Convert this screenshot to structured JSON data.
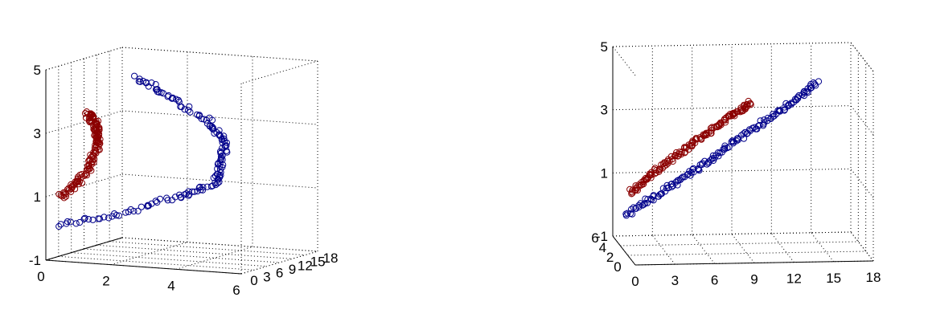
{
  "chart_data": [
    {
      "type": "scatter",
      "view": "3d",
      "grid": true,
      "axes": {
        "x": {
          "ticks": [
            "0",
            "2",
            "4",
            "6"
          ],
          "range": [
            0,
            6
          ]
        },
        "y": {
          "ticks": [
            "0",
            "3",
            "6",
            "9",
            "12",
            "15",
            "18"
          ],
          "range": [
            0,
            18
          ]
        },
        "z": {
          "ticks": [
            "-1",
            "1",
            "3",
            "5"
          ],
          "range": [
            -1,
            5
          ]
        }
      },
      "series": [
        {
          "color": "#00008b",
          "marker": "open-circle",
          "curve": [
            [
              0,
              0
            ],
            [
              2,
              0.5
            ],
            [
              3.8,
              1.2
            ],
            [
              4.8,
              1.6
            ],
            [
              5.0,
              2.3
            ],
            [
              5.1,
              3.0
            ],
            [
              4.6,
              3.6
            ],
            [
              3.4,
              4.3
            ],
            [
              2.4,
              4.8
            ]
          ]
        },
        {
          "color": "#8b0000",
          "marker": "open-circle",
          "curve": [
            [
              0.1,
              0.9
            ],
            [
              0.6,
              1.4
            ],
            [
              1.0,
              2.0
            ],
            [
              1.2,
              2.6
            ],
            [
              1.2,
              3.0
            ],
            [
              1.1,
              3.3
            ],
            [
              0.9,
              3.6
            ]
          ]
        }
      ]
    },
    {
      "type": "scatter",
      "view": "3d",
      "grid": true,
      "axes": {
        "x": {
          "ticks": [
            "0",
            "3",
            "6",
            "9",
            "12",
            "15",
            "18"
          ],
          "range": [
            0,
            18
          ]
        },
        "y": {
          "ticks": [
            "0",
            "2",
            "4",
            "6"
          ],
          "range": [
            0,
            6
          ]
        },
        "z": {
          "ticks": [
            "-1",
            "1",
            "3",
            "5"
          ],
          "range": [
            -1,
            5
          ]
        }
      },
      "series": [
        {
          "color": "#00008b",
          "marker": "open-circle",
          "curve": [
            [
              0,
              0.2
            ],
            [
              3,
              1.0
            ],
            [
              6,
              1.8
            ],
            [
              9,
              2.7
            ],
            [
              12,
              3.5
            ],
            [
              14.5,
              4.3
            ]
          ]
        },
        {
          "color": "#8b0000",
          "marker": "open-circle",
          "curve": [
            [
              0.4,
              0.9
            ],
            [
              2,
              1.5
            ],
            [
              4,
              2.1
            ],
            [
              6,
              2.7
            ],
            [
              8,
              3.3
            ],
            [
              9.5,
              3.7
            ]
          ]
        }
      ]
    }
  ]
}
